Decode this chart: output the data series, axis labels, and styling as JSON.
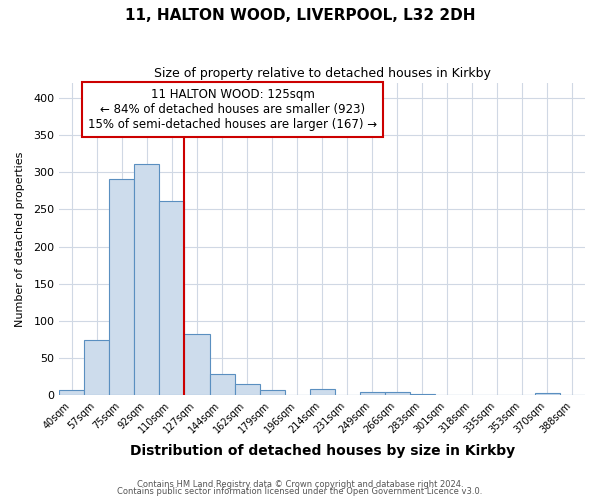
{
  "title1": "11, HALTON WOOD, LIVERPOOL, L32 2DH",
  "title2": "Size of property relative to detached houses in Kirkby",
  "xlabel": "Distribution of detached houses by size in Kirkby",
  "ylabel": "Number of detached properties",
  "bin_labels": [
    "40sqm",
    "57sqm",
    "75sqm",
    "92sqm",
    "110sqm",
    "127sqm",
    "144sqm",
    "162sqm",
    "179sqm",
    "196sqm",
    "214sqm",
    "231sqm",
    "249sqm",
    "266sqm",
    "283sqm",
    "301sqm",
    "318sqm",
    "335sqm",
    "353sqm",
    "370sqm",
    "388sqm"
  ],
  "bar_values": [
    7,
    75,
    291,
    311,
    262,
    83,
    29,
    15,
    7,
    0,
    8,
    1,
    5,
    4,
    2,
    0,
    0,
    0,
    0,
    3,
    0
  ],
  "bar_color": "#cddcec",
  "bar_edge_color": "#5a8fc0",
  "vline_x_index": 5,
  "vline_color": "#cc0000",
  "annotation_lines": [
    "11 HALTON WOOD: 125sqm",
    "← 84% of detached houses are smaller (923)",
    "15% of semi-detached houses are larger (167) →"
  ],
  "annotation_box_color": "white",
  "annotation_box_edgecolor": "#cc0000",
  "ylim": [
    0,
    420
  ],
  "yticks": [
    0,
    50,
    100,
    150,
    200,
    250,
    300,
    350,
    400
  ],
  "footer1": "Contains HM Land Registry data © Crown copyright and database right 2024.",
  "footer2": "Contains public sector information licensed under the Open Government Licence v3.0.",
  "bg_color": "#ffffff",
  "plot_bg_color": "#ffffff",
  "grid_color": "#d0d8e4",
  "title1_fontsize": 11,
  "title2_fontsize": 9,
  "xlabel_fontsize": 10,
  "ylabel_fontsize": 8
}
